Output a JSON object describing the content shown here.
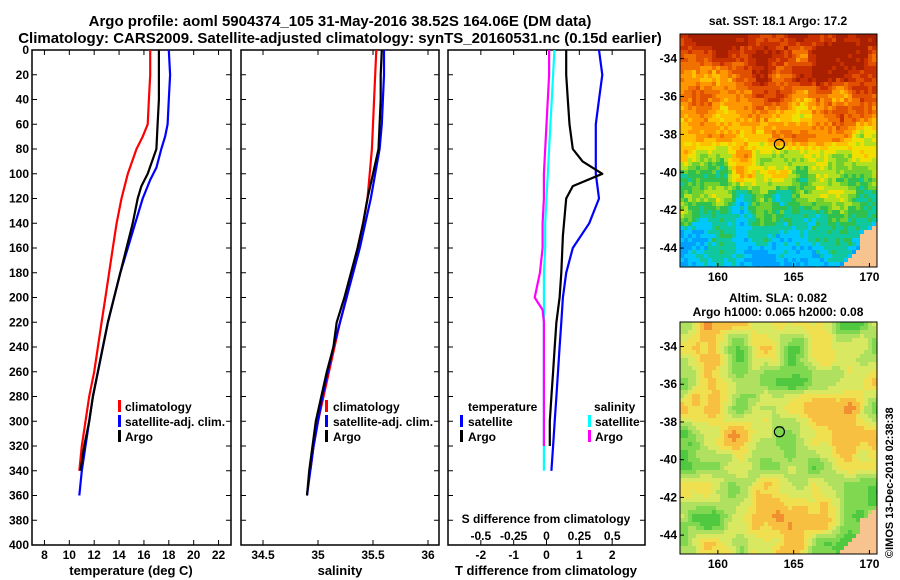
{
  "header": {
    "title1": "Argo profile: aoml 5904374_105 31-May-2016 38.52S 164.06E (DM data)",
    "title2": "Climatology: CARS2009. Satellite-adjusted climatology: synTS_20160531.nc (0.15d earlier)"
  },
  "colors": {
    "climatology": "#ff0000",
    "satellite": "#0000ff",
    "argo": "#000000",
    "s_satellite": "#00ffff",
    "s_climatology": "#ff00ff"
  },
  "chart_data": [
    {
      "id": "temperature",
      "type": "line",
      "title": "",
      "xlabel": "temperature (deg C)",
      "ylabel": "",
      "xlim": [
        7,
        23
      ],
      "ylim": [
        400,
        0
      ],
      "xticks": [
        "8",
        "10",
        "12",
        "14",
        "16",
        "18",
        "20",
        "22"
      ],
      "yticks": [
        "0",
        "20",
        "40",
        "60",
        "80",
        "100",
        "120",
        "140",
        "160",
        "180",
        "200",
        "220",
        "240",
        "260",
        "280",
        "300",
        "320",
        "340",
        "360",
        "380",
        "400"
      ],
      "legend": [
        "climatology",
        "satellite-adj. clim.",
        "Argo"
      ],
      "series": [
        {
          "name": "climatology",
          "color": "#ff0000",
          "x": [
            16.5,
            16.5,
            16.4,
            16.3,
            15.9,
            15.4,
            14.7,
            14.2,
            13.8,
            13.5,
            13.2,
            12.9,
            12.6,
            12.3,
            12.0,
            11.6,
            11.3,
            11.0,
            10.8
          ],
          "y": [
            0,
            20,
            40,
            60,
            70,
            80,
            100,
            120,
            140,
            160,
            180,
            200,
            220,
            240,
            260,
            280,
            300,
            320,
            340
          ]
        },
        {
          "name": "satellite-adj. clim.",
          "color": "#0000ff",
          "x": [
            18.0,
            18.1,
            18.0,
            17.9,
            17.7,
            17.4,
            17.0,
            16.5,
            15.9,
            15.3,
            14.7,
            14.1,
            13.6,
            13.1,
            12.7,
            12.3,
            11.9,
            11.6,
            11.3,
            11.0,
            10.8
          ],
          "y": [
            0,
            20,
            40,
            60,
            70,
            80,
            95,
            105,
            120,
            140,
            160,
            180,
            200,
            220,
            240,
            260,
            280,
            300,
            320,
            340,
            360
          ]
        },
        {
          "name": "Argo",
          "color": "#000000",
          "x": [
            17.2,
            17.2,
            17.2,
            17.1,
            17.0,
            16.3,
            15.8,
            15.5,
            15.1,
            14.6,
            14.1,
            13.6,
            13.1,
            12.7,
            12.3,
            11.9,
            11.6,
            11.2,
            10.9
          ],
          "y": [
            0,
            20,
            40,
            60,
            80,
            100,
            110,
            120,
            140,
            160,
            180,
            200,
            220,
            240,
            260,
            280,
            300,
            320,
            340
          ]
        }
      ]
    },
    {
      "id": "salinity",
      "type": "line",
      "title": "",
      "xlabel": "salinity",
      "ylabel": "",
      "xlim": [
        34.3,
        36.1
      ],
      "ylim": [
        400,
        0
      ],
      "xticks": [
        "34.5",
        "35",
        "35.5",
        "36"
      ],
      "yticks": [],
      "legend": [
        "climatology",
        "satellite-adj. clim.",
        "Argo"
      ],
      "series": [
        {
          "name": "climatology",
          "color": "#ff0000",
          "x": [
            35.53,
            35.52,
            35.51,
            35.5,
            35.49,
            35.47,
            35.45,
            35.41,
            35.36,
            35.31,
            35.26,
            35.2,
            35.15,
            35.1,
            35.05,
            35.0,
            34.96,
            34.93
          ],
          "y": [
            0,
            20,
            40,
            60,
            80,
            100,
            120,
            140,
            160,
            180,
            200,
            220,
            240,
            260,
            280,
            300,
            320,
            340
          ]
        },
        {
          "name": "satellite-adj. clim.",
          "color": "#0000ff",
          "x": [
            35.6,
            35.6,
            35.59,
            35.58,
            35.56,
            35.52,
            35.48,
            35.43,
            35.38,
            35.32,
            35.26,
            35.2,
            35.14,
            35.09,
            35.04,
            35.0,
            34.96,
            34.93,
            34.9
          ],
          "y": [
            0,
            20,
            40,
            60,
            80,
            100,
            120,
            140,
            160,
            180,
            200,
            220,
            240,
            260,
            280,
            300,
            320,
            340,
            360
          ]
        },
        {
          "name": "Argo",
          "color": "#000000",
          "x": [
            35.58,
            35.57,
            35.57,
            35.56,
            35.55,
            35.5,
            35.45,
            35.41,
            35.36,
            35.3,
            35.24,
            35.17,
            35.14,
            35.08,
            35.03,
            34.98,
            34.95,
            34.92,
            34.9
          ],
          "y": [
            0,
            20,
            40,
            60,
            80,
            100,
            120,
            140,
            160,
            180,
            200,
            220,
            240,
            260,
            280,
            300,
            320,
            340,
            360
          ]
        }
      ]
    },
    {
      "id": "difference",
      "type": "line",
      "title": "",
      "xlabel": "T difference from climatology",
      "xlim": [
        -3,
        3
      ],
      "ylim": [
        400,
        0
      ],
      "xticks": [
        "-2",
        "-1",
        "0",
        "1",
        "2"
      ],
      "s_axis_label": "S difference from climatology",
      "s_ticks": [
        "-0.5",
        "-0.25",
        "0",
        "0.25",
        "0.5"
      ],
      "legend_t_title": "temperature",
      "legend_t": [
        "satellite",
        "Argo"
      ],
      "legend_s_title": "salinity",
      "legend_s": [
        "satellite",
        "Argo"
      ],
      "series": [
        {
          "name": "T satellite",
          "color": "#0000ff",
          "x": [
            1.6,
            1.7,
            1.6,
            1.5,
            1.5,
            1.5,
            1.6,
            1.3,
            0.8,
            0.6,
            0.5,
            0.45,
            0.4,
            0.35,
            0.3,
            0.25,
            0.2,
            0.15
          ],
          "y": [
            0,
            20,
            40,
            60,
            80,
            100,
            120,
            140,
            160,
            180,
            200,
            220,
            240,
            260,
            280,
            300,
            320,
            340
          ]
        },
        {
          "name": "T Argo",
          "color": "#000000",
          "x": [
            0.6,
            0.6,
            0.65,
            0.7,
            0.8,
            1.1,
            1.7,
            0.8,
            0.6,
            0.5,
            0.45,
            0.4,
            0.3,
            0.25,
            0.2,
            0.15,
            0.1,
            0.1
          ],
          "y": [
            0,
            20,
            40,
            60,
            80,
            90,
            100,
            110,
            120,
            150,
            180,
            200,
            220,
            240,
            260,
            280,
            300,
            320
          ]
        },
        {
          "name": "S satellite",
          "color": "#00ffff",
          "x": [
            0.06,
            0.05,
            0.04,
            0.03,
            0.02,
            0.01,
            0.0,
            -0.01,
            -0.01,
            -0.02,
            -0.02,
            -0.02,
            -0.02,
            -0.02,
            -0.02,
            -0.02,
            -0.02,
            -0.02
          ],
          "y": [
            0,
            20,
            40,
            60,
            80,
            100,
            120,
            140,
            160,
            180,
            200,
            220,
            240,
            260,
            280,
            300,
            320,
            340
          ]
        },
        {
          "name": "S Argo",
          "color": "#ff00ff",
          "x": [
            0.02,
            0.02,
            0.01,
            0.0,
            -0.01,
            -0.02,
            -0.02,
            -0.03,
            -0.03,
            -0.05,
            -0.09,
            -0.03,
            -0.02,
            -0.02,
            -0.02,
            -0.02,
            -0.02,
            -0.02
          ],
          "y": [
            0,
            20,
            40,
            60,
            80,
            100,
            120,
            140,
            160,
            180,
            200,
            210,
            220,
            240,
            260,
            280,
            300,
            320
          ]
        }
      ]
    },
    {
      "id": "sst-map",
      "type": "heatmap",
      "title": "sat. SST: 18.1 Argo: 17.2",
      "xticks": [
        "160",
        "165",
        "170"
      ],
      "yticks": [
        "-34",
        "-36",
        "-38",
        "-40",
        "-42",
        "-44"
      ],
      "xlim": [
        157.5,
        170.5
      ],
      "ylim": [
        -45,
        -32.7
      ],
      "argo_position": {
        "lon": 164.06,
        "lat": -38.52
      }
    },
    {
      "id": "sla-map",
      "type": "heatmap",
      "title": "Altim. SLA: 0.082",
      "subtitle": "Argo h1000: 0.065 h2000: 0.08",
      "xticks": [
        "160",
        "165",
        "170"
      ],
      "yticks": [
        "-34",
        "-36",
        "-38",
        "-40",
        "-42",
        "-44"
      ],
      "xlim": [
        157.5,
        170.5
      ],
      "ylim": [
        -45,
        -32.7
      ],
      "argo_position": {
        "lon": 164.06,
        "lat": -38.52
      }
    }
  ],
  "footer": {
    "stamp": "©IMOS 13-Dec-2018 02:38:38"
  }
}
